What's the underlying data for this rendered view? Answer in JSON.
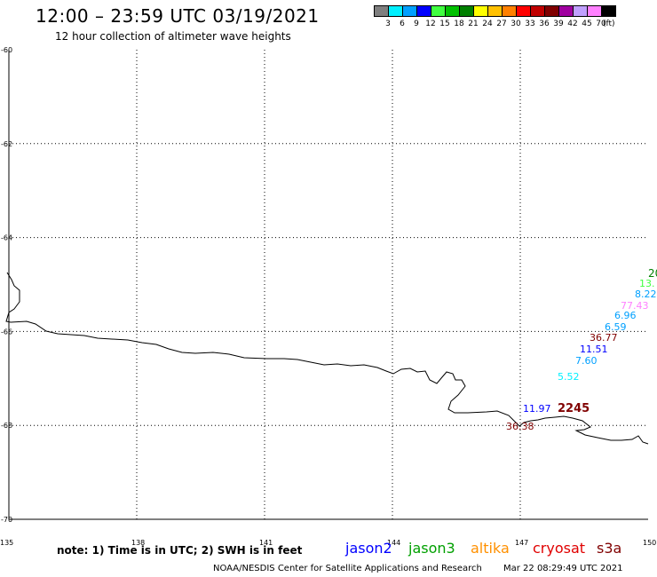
{
  "header": {
    "title": "12:00 – 23:59 UTC 03/19/2021",
    "subtitle": "12 hour collection of altimeter wave heights"
  },
  "colorbar": {
    "unit": "(ft)",
    "swatches": [
      {
        "label": "3",
        "color": "#7f7f7f"
      },
      {
        "label": "6",
        "color": "#00f0ff"
      },
      {
        "label": "9",
        "color": "#00a0ff"
      },
      {
        "label": "12",
        "color": "#0000ff"
      },
      {
        "label": "15",
        "color": "#40ff40"
      },
      {
        "label": "18",
        "color": "#00c000"
      },
      {
        "label": "21",
        "color": "#008000"
      },
      {
        "label": "24",
        "color": "#ffff00"
      },
      {
        "label": "27",
        "color": "#ffc000"
      },
      {
        "label": "30",
        "color": "#ff8000"
      },
      {
        "label": "33",
        "color": "#ff0000"
      },
      {
        "label": "36",
        "color": "#c00000"
      },
      {
        "label": "39",
        "color": "#800000"
      },
      {
        "label": "42",
        "color": "#a000a0"
      },
      {
        "label": "45",
        "color": "#c0a0ff"
      },
      {
        "label": "70",
        "color": "#ff80ff"
      },
      {
        "label": "",
        "color": "#000000"
      }
    ]
  },
  "map": {
    "lat_labels": [
      {
        "text": "-60",
        "lat": -60
      },
      {
        "text": "-62",
        "lat": -62
      },
      {
        "text": "-64",
        "lat": -64
      },
      {
        "text": "-66",
        "lat": -66
      },
      {
        "text": "-68",
        "lat": -68
      },
      {
        "text": "-70",
        "lat": -70
      }
    ],
    "lon_labels": [
      {
        "text": "135",
        "lon": 135
      },
      {
        "text": "138",
        "lon": 138
      },
      {
        "text": "141",
        "lon": 141
      },
      {
        "text": "144",
        "lon": 144
      },
      {
        "text": "147",
        "lon": 147
      },
      {
        "text": "150",
        "lon": 150
      }
    ],
    "observations": [
      {
        "text": "20",
        "color": "#008000"
      },
      {
        "text": "13.",
        "color": "#40ff40"
      },
      {
        "text": "8.22",
        "color": "#00a0ff"
      },
      {
        "text": "77.43",
        "color": "#ff80ff"
      },
      {
        "text": "6.96",
        "color": "#00a0ff"
      },
      {
        "text": "6.59",
        "color": "#00a0ff"
      },
      {
        "text": "36.77",
        "color": "#800000"
      },
      {
        "text": "11.51",
        "color": "#0000ff"
      },
      {
        "text": "7.60",
        "color": "#00a0ff"
      },
      {
        "text": "5.52",
        "color": "#00f0ff"
      },
      {
        "text": "11.97",
        "color": "#0000ff"
      },
      {
        "text": "2245",
        "color": "#800000"
      },
      {
        "text": "36.38",
        "color": "#800000"
      }
    ]
  },
  "footer": {
    "note": "note: 1) Time is in UTC; 2) SWH is in feet",
    "satellites": [
      {
        "name": "jason2",
        "color": "#0000ff"
      },
      {
        "name": "jason3",
        "color": "#00a000"
      },
      {
        "name": "altika",
        "color": "#ff9000"
      },
      {
        "name": "cryosat",
        "color": "#e00000"
      },
      {
        "name": "s3a",
        "color": "#800000"
      }
    ],
    "credit": "NOAA/NESDIS Center for Satellite Applications and Research",
    "timestamp": "Mar 22 08:29:49 UTC 2021"
  }
}
